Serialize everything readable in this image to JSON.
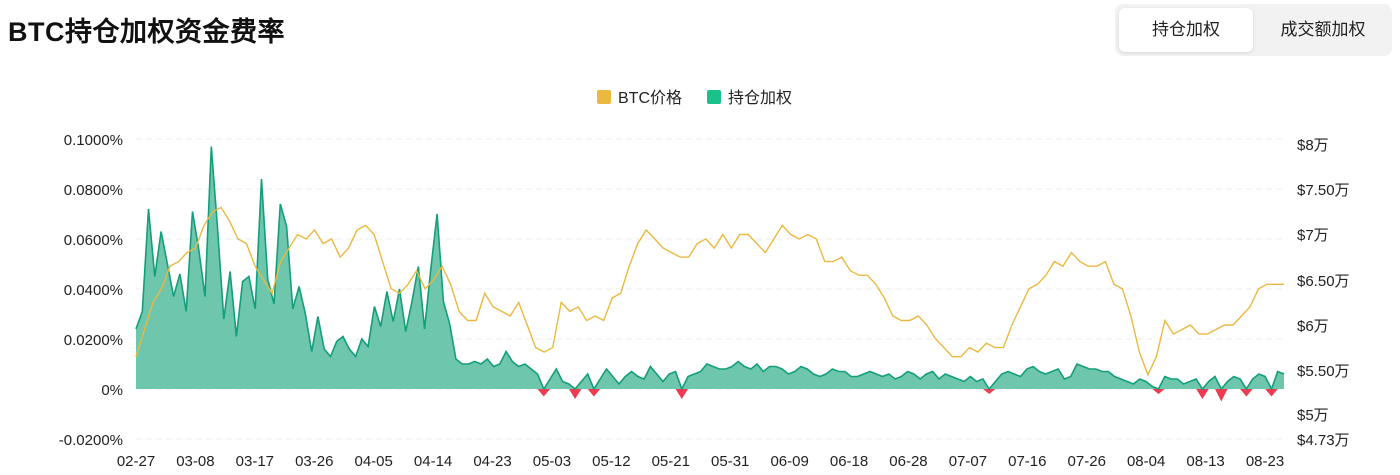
{
  "header": {
    "title": "BTC持仓加权资金费率",
    "tabs": [
      {
        "label": "持仓加权",
        "active": true
      },
      {
        "label": "成交额加权",
        "active": false
      }
    ]
  },
  "chart_data": {
    "type": "area",
    "legend": [
      {
        "name": "BTC价格",
        "color": "#ebb840"
      },
      {
        "name": "持仓加权",
        "color": "#19c28a"
      }
    ],
    "legend_position": "top-center",
    "grid": true,
    "colors": {
      "positive_fill": "#66c3a8",
      "positive_line": "#139e7c",
      "negative_fill": "#ef3b52",
      "price_line": "#ebb840"
    },
    "x_ticks": [
      "02-27",
      "03-08",
      "03-17",
      "03-26",
      "04-05",
      "04-14",
      "04-23",
      "05-03",
      "05-12",
      "05-21",
      "05-31",
      "06-09",
      "06-18",
      "06-28",
      "07-07",
      "07-16",
      "07-26",
      "08-04",
      "08-13",
      "08-23"
    ],
    "y_left": {
      "ticks": [
        "0.1000%",
        "0.0800%",
        "0.0600%",
        "0.0400%",
        "0.0200%",
        "0%",
        "-0.0200%"
      ],
      "range": [
        -0.02,
        0.1
      ]
    },
    "y_right": {
      "ticks": [
        "$8万",
        "$7.50万",
        "$7万",
        "$6.50万",
        "$6万",
        "$5.50万",
        "$5万",
        "$4.73万"
      ],
      "range": [
        47300,
        80000
      ]
    },
    "series": [
      {
        "name": "BTC价格",
        "axis": "right",
        "values": [
          56500,
          59500,
          62500,
          64000,
          66500,
          67000,
          68000,
          68500,
          71000,
          72500,
          73000,
          71500,
          69500,
          69000,
          66500,
          65000,
          63500,
          67000,
          68500,
          70000,
          69500,
          70500,
          69000,
          69500,
          67500,
          68500,
          70500,
          71000,
          70000,
          67000,
          64000,
          63500,
          64500,
          66000,
          64000,
          65000,
          66500,
          64500,
          61500,
          60500,
          60500,
          63500,
          62000,
          61500,
          61000,
          62500,
          60000,
          57500,
          57000,
          57500,
          62500,
          61500,
          62000,
          60500,
          61000,
          60500,
          63000,
          63500,
          66500,
          69000,
          70500,
          69500,
          68500,
          68000,
          67500,
          67500,
          69000,
          69500,
          68500,
          70000,
          68500,
          70000,
          70000,
          69000,
          68000,
          69500,
          71000,
          70000,
          69500,
          70000,
          69500,
          67000,
          67000,
          67500,
          66000,
          65500,
          65500,
          64500,
          63000,
          61000,
          60500,
          60500,
          61000,
          60000,
          58500,
          57500,
          56500,
          56500,
          57500,
          57000,
          58000,
          57500,
          57500,
          60000,
          62000,
          64000,
          64500,
          65500,
          67000,
          66500,
          68000,
          67000,
          66500,
          66500,
          67000,
          64500,
          64000,
          61000,
          57000,
          54500,
          56500,
          60500,
          59000,
          59500,
          60000,
          59000,
          59000,
          59500,
          60000,
          60000,
          61000,
          62000,
          64000,
          64500,
          64500,
          64500
        ]
      },
      {
        "name": "持仓加权",
        "axis": "left",
        "values": [
          0.024,
          0.031,
          0.072,
          0.045,
          0.063,
          0.05,
          0.037,
          0.046,
          0.031,
          0.071,
          0.056,
          0.037,
          0.097,
          0.064,
          0.028,
          0.047,
          0.021,
          0.043,
          0.045,
          0.032,
          0.084,
          0.044,
          0.034,
          0.074,
          0.065,
          0.032,
          0.041,
          0.03,
          0.015,
          0.029,
          0.016,
          0.013,
          0.019,
          0.021,
          0.016,
          0.013,
          0.02,
          0.017,
          0.033,
          0.025,
          0.039,
          0.027,
          0.04,
          0.023,
          0.035,
          0.049,
          0.024,
          0.048,
          0.07,
          0.035,
          0.026,
          0.012,
          0.01,
          0.01,
          0.011,
          0.01,
          0.012,
          0.009,
          0.01,
          0.015,
          0.011,
          0.009,
          0.01,
          0.008,
          0.006,
          -0.003,
          0.004,
          0.008,
          0.003,
          0.002,
          -0.004,
          0.003,
          0.006,
          -0.003,
          0.004,
          0.008,
          0.005,
          0.002,
          0.005,
          0.007,
          0.005,
          0.004,
          0.009,
          0.006,
          0.003,
          0.006,
          0.007,
          -0.004,
          0.005,
          0.006,
          0.007,
          0.01,
          0.009,
          0.008,
          0.008,
          0.009,
          0.011,
          0.009,
          0.008,
          0.01,
          0.007,
          0.009,
          0.009,
          0.008,
          0.006,
          0.007,
          0.009,
          0.008,
          0.006,
          0.005,
          0.006,
          0.008,
          0.007,
          0.007,
          0.005,
          0.005,
          0.006,
          0.007,
          0.006,
          0.005,
          0.006,
          0.004,
          0.005,
          0.007,
          0.006,
          0.004,
          0.006,
          0.007,
          0.004,
          0.006,
          0.005,
          0.004,
          0.003,
          0.005,
          0.003,
          0.004,
          -0.002,
          0.003,
          0.006,
          0.007,
          0.006,
          0.005,
          0.008,
          0.009,
          0.007,
          0.006,
          0.007,
          0.008,
          0.004,
          0.005,
          0.01,
          0.009,
          0.008,
          0.008,
          0.007,
          0.007,
          0.005,
          0.004,
          0.003,
          0.002,
          0.004,
          0.003,
          0.001,
          -0.002,
          0.005,
          0.004,
          0.004,
          0.002,
          0.003,
          0.004,
          -0.004,
          0.003,
          0.005,
          -0.005,
          0.003,
          0.005,
          0.004,
          -0.003,
          0.004,
          0.006,
          0.005,
          -0.003,
          0.007,
          0.006
        ]
      }
    ]
  }
}
